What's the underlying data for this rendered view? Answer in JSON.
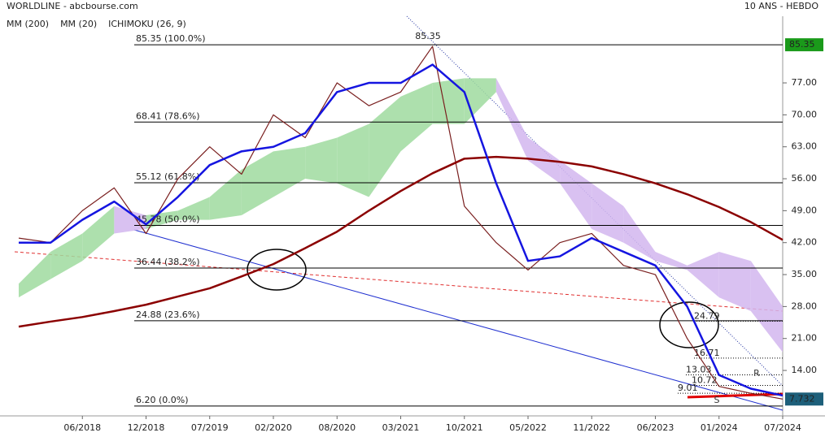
{
  "chart_data": {
    "type": "line",
    "title": "WORLDLINE - abcbourse.com",
    "subtitle": "10 ANS - HEBDO",
    "categories": [
      null,
      null,
      "06/2018",
      null,
      "12/2018",
      null,
      "07/2019",
      null,
      "02/2020",
      null,
      "08/2020",
      null,
      "03/2021",
      null,
      "10/2021",
      null,
      "05/2022",
      null,
      "11/2022",
      null,
      "06/2023",
      null,
      "01/2024",
      null,
      "07/2024"
    ],
    "price": {
      "color": "#7a1f1f",
      "values": [
        43,
        42,
        49,
        54,
        44,
        56,
        63,
        57,
        70,
        65,
        77,
        72,
        75,
        85,
        50,
        42,
        36,
        42,
        44,
        37,
        35,
        21,
        10.5,
        9,
        7.73
      ]
    },
    "series": [
      {
        "name": "MM (200)",
        "color": "#8b0000",
        "values": [
          23.6,
          24.7,
          25.7,
          27,
          28.4,
          30.2,
          32,
          34.6,
          37.3,
          40.8,
          44.4,
          49,
          53.3,
          57.2,
          60.4,
          60.8,
          60.4,
          59.7,
          58.7,
          57,
          55,
          52.6,
          49.8,
          46.5,
          42.6
        ]
      },
      {
        "name": "MM (20)",
        "color": "#1515e0",
        "values": [
          42,
          42,
          47,
          51,
          46,
          52,
          59,
          62,
          63,
          66,
          75,
          77,
          77,
          81,
          75,
          55,
          38,
          39,
          43,
          40,
          37,
          28,
          13,
          10,
          8.5
        ]
      },
      {
        "name": "ICHIMOKU (26, 9)",
        "color": "#2f7fd8",
        "cloud_colors": [
          "#9fdb9f",
          "#d2b6ee"
        ],
        "upper": [
          33,
          40,
          44,
          50,
          48,
          49,
          52,
          58,
          62,
          63,
          65,
          68,
          74,
          77,
          78,
          78,
          65,
          60,
          55,
          50,
          40,
          37,
          40,
          38,
          28
        ],
        "lower": [
          30,
          34,
          38,
          44,
          45,
          47,
          47,
          48,
          52,
          56,
          55,
          52,
          62,
          68,
          68,
          75,
          60,
          55,
          45,
          42,
          38,
          36,
          30,
          27,
          18
        ]
      }
    ],
    "ylim": [
      4.4,
      91.6
    ],
    "yticks": [
      {
        "value": 14,
        "label": "14.00"
      },
      {
        "value": 21,
        "label": "21.00"
      },
      {
        "value": 28,
        "label": "28.00"
      },
      {
        "value": 35,
        "label": "35.00"
      },
      {
        "value": 42,
        "label": "42.00"
      },
      {
        "value": 49,
        "label": "49.00"
      },
      {
        "value": 56,
        "label": "56.00"
      },
      {
        "value": 63,
        "label": "63.00"
      },
      {
        "value": 70,
        "label": "70.00"
      },
      {
        "value": 77,
        "label": "77.00"
      }
    ],
    "fib_levels": [
      {
        "value": 85.35,
        "label": "85.35  (100.0%)"
      },
      {
        "value": 68.41,
        "label": "68.41  (78.6%)"
      },
      {
        "value": 55.12,
        "label": "55.12  (61.8%)"
      },
      {
        "value": 45.78,
        "label": "45.78  (50.0%)"
      },
      {
        "value": 36.44,
        "label": "36.44  (38.2%)"
      },
      {
        "value": 24.88,
        "label": "24.88  (23.6%)"
      },
      {
        "value": 6.2,
        "label": "6.20  (0.0%)"
      }
    ],
    "levels": [
      24.79,
      16.71,
      13.03,
      10.72,
      9.01
    ],
    "high_price": 85.35,
    "last_price": 7.732,
    "resistance": "R",
    "support": "S"
  }
}
